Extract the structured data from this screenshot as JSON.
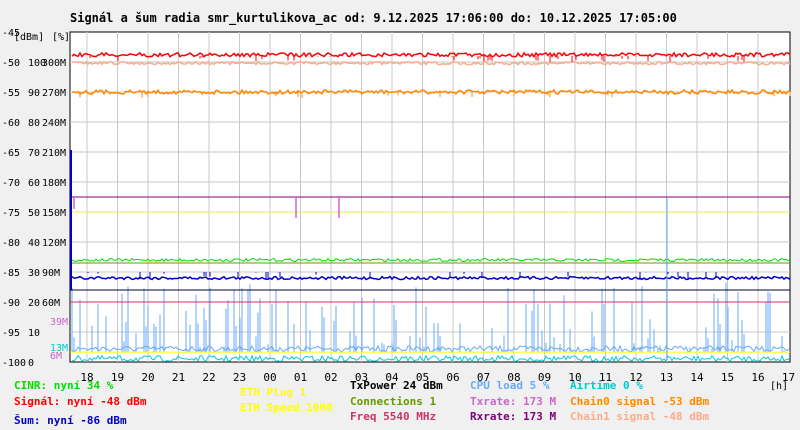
{
  "title": "Signál a šum radia smr_kurtulikova_ac od: 9.12.2025 17:06:00 do: 10.12.2025 17:05:00",
  "unit_header": {
    "dbm": "[dBm]",
    "pct": "[%]",
    "h": "[h]"
  },
  "axes": {
    "dbm": [
      "-45",
      "-50",
      "-55",
      "-60",
      "-65",
      "-70",
      "-75",
      "-80",
      "-85",
      "-90",
      "-95",
      "-100"
    ],
    "pct": [
      "100",
      "90",
      "80",
      "70",
      "60",
      "50",
      "40",
      "30",
      "20",
      "10",
      "0"
    ],
    "rate": [
      "300M",
      "270M",
      "240M",
      "210M",
      "180M",
      "150M",
      "120M",
      "90M",
      "60M",
      "39M",
      "13M",
      "6M"
    ],
    "hours": [
      "18",
      "19",
      "20",
      "21",
      "22",
      "23",
      "00",
      "01",
      "02",
      "03",
      "04",
      "05",
      "06",
      "07",
      "08",
      "09",
      "10",
      "11",
      "12",
      "13",
      "14",
      "15",
      "16",
      "17"
    ]
  },
  "colors": {
    "background": "#f0f0f0",
    "plot_bg": "#ffffff",
    "grid": "#c8c8c8",
    "text": "#000000",
    "signal": "#ff0000",
    "chain1": "#ffaa88",
    "chain0": "#ff8800",
    "noise": "#0000cc",
    "cinr": "#00dd00",
    "airtime": "#00cccc",
    "cpu": "#66aaff",
    "txrate": "#cc66cc",
    "rxrate": "#800080",
    "eth_plug": "#ffff00",
    "connections": "#669900",
    "freq": "#cc3366",
    "txpower": "#000000"
  },
  "legend": [
    {
      "key": "cinr",
      "text": "CINR: nyní 34 %",
      "color": "#00dd00"
    },
    {
      "key": "signal",
      "text": "Signál: nyní -48 dBm",
      "color": "#ff0000"
    },
    {
      "key": "noise",
      "text": "Šum: nyní -86 dBm",
      "color": "#0000cc"
    },
    {
      "key": "eth_plug",
      "text": "ETH Plug 1",
      "color": "#ffff00"
    },
    {
      "key": "eth_speed",
      "text": "ETH Speed 1000",
      "color": "#ffff00"
    },
    {
      "key": "txpower",
      "text": "TxPower 24 dBm",
      "color": "#000000"
    },
    {
      "key": "connections",
      "text": "Connections 1",
      "color": "#669900"
    },
    {
      "key": "freq",
      "text": "Freq 5540 MHz",
      "color": "#cc3366"
    },
    {
      "key": "cpu",
      "text": "CPU load 5 %",
      "color": "#66aaff"
    },
    {
      "key": "txrate",
      "text": "Txrate: 173 M",
      "color": "#cc66cc"
    },
    {
      "key": "rxrate",
      "text": "Rxrate: 173 M",
      "color": "#800080"
    },
    {
      "key": "airtime",
      "text": "Airtime 0 %",
      "color": "#00cccc"
    },
    {
      "key": "chain0",
      "text": "Chain0 signal -53 dBm",
      "color": "#ff8800"
    },
    {
      "key": "chain1",
      "text": "Chain1 signal -48 dBm",
      "color": "#ffaa88"
    }
  ],
  "chart_data": {
    "type": "line",
    "title": "Signál a šum radia smr_kurtulikova_ac od: 9.12.2025 17:06:00 do: 10.12.2025 17:05:00",
    "x_start": "9.12.2025 17:06:00",
    "x_end": "10.12.2025 17:05:00",
    "ylim_dbm": [
      -100,
      -45
    ],
    "ylim_pct": [
      0,
      100
    ],
    "grid": true,
    "series": [
      {
        "name": "Signál",
        "axis": "dBm",
        "color": "#ff0000",
        "typical": -49,
        "current": -48
      },
      {
        "name": "Chain1 signal",
        "axis": "dBm",
        "color": "#ffaa88",
        "typical": -50,
        "current": -48
      },
      {
        "name": "Chain0 signal",
        "axis": "dBm",
        "color": "#ff8800",
        "typical": -55,
        "current": -53
      },
      {
        "name": "Šum",
        "axis": "dBm",
        "color": "#0000cc",
        "typical": -86,
        "current": -86
      },
      {
        "name": "CINR",
        "axis": "%",
        "color": "#00dd00",
        "typical": 34,
        "current": 34
      },
      {
        "name": "Txrate",
        "axis": "Mbps",
        "color": "#cc66cc",
        "typical": 173,
        "current": 173
      },
      {
        "name": "Rxrate",
        "axis": "Mbps",
        "color": "#800080",
        "typical": 173,
        "current": 173
      },
      {
        "name": "CPU load",
        "axis": "%",
        "color": "#66aaff",
        "typical": 5,
        "current": 5
      },
      {
        "name": "Airtime",
        "axis": "%",
        "color": "#00cccc",
        "typical": 0,
        "current": 0
      }
    ]
  }
}
